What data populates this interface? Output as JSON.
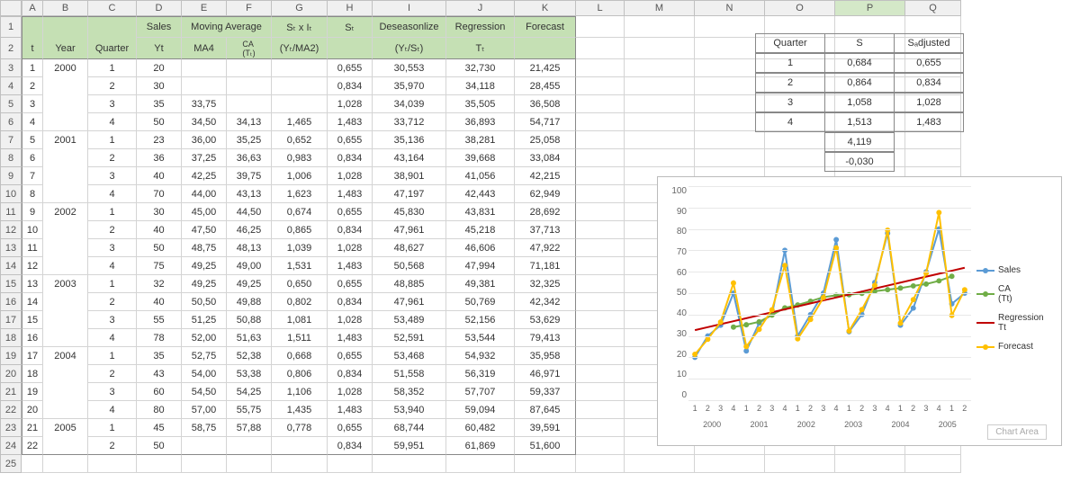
{
  "colWidths": {
    "corner": 24,
    "A": 24,
    "B": 50,
    "C": 54,
    "D": 50,
    "E": 50,
    "F": 50,
    "G": 62,
    "H": 50,
    "I": 82,
    "J": 76,
    "K": 68,
    "L": 54,
    "M": 78,
    "N": 78,
    "O": 78,
    "P": 78,
    "Q": 62
  },
  "colLetters": [
    "A",
    "B",
    "C",
    "D",
    "E",
    "F",
    "G",
    "H",
    "I",
    "J",
    "K",
    "L",
    "M",
    "N",
    "O",
    "P",
    "Q"
  ],
  "selectedCol": "P",
  "rowCount": 25,
  "headersTop": {
    "D": "Sales",
    "E": "Moving Average",
    "G": "Sₜ x Iₜ",
    "H": "Sₜ",
    "I": "Deseasonlize",
    "J": "Regression",
    "K": "Forecast"
  },
  "headersBottom": {
    "A": "t",
    "B": "Year",
    "C": "Quarter",
    "D": "Yt",
    "E": "MA4",
    "F": "CA\n(Tₜ)",
    "G": "(Yₜ/MA2)",
    "I": "(Yₜ/Sₜ)",
    "J": "Tₜ"
  },
  "yearSpans": [
    {
      "year": "2000",
      "from": 3,
      "to": 6
    },
    {
      "year": "2001",
      "from": 7,
      "to": 10
    },
    {
      "year": "2002",
      "from": 11,
      "to": 14
    },
    {
      "year": "2003",
      "from": 15,
      "to": 18
    },
    {
      "year": "2004",
      "from": 19,
      "to": 22
    },
    {
      "year": "2005",
      "from": 23,
      "to": 24
    }
  ],
  "rows": [
    {
      "t": 1,
      "q": 1,
      "yt": 20,
      "ma4": "",
      "ca": "",
      "sxi": "",
      "s": "0,655",
      "de": "30,553",
      "reg": "32,730",
      "fc": "21,425"
    },
    {
      "t": 2,
      "q": 2,
      "yt": 30,
      "ma4": "",
      "ca": "",
      "sxi": "",
      "s": "0,834",
      "de": "35,970",
      "reg": "34,118",
      "fc": "28,455"
    },
    {
      "t": 3,
      "q": 3,
      "yt": 35,
      "ma4": "33,75",
      "ca": "",
      "sxi": "",
      "s": "1,028",
      "de": "34,039",
      "reg": "35,505",
      "fc": "36,508"
    },
    {
      "t": 4,
      "q": 4,
      "yt": 50,
      "ma4": "34,50",
      "ca": "34,13",
      "sxi": "1,465",
      "s": "1,483",
      "de": "33,712",
      "reg": "36,893",
      "fc": "54,717"
    },
    {
      "t": 5,
      "q": 1,
      "yt": 23,
      "ma4": "36,00",
      "ca": "35,25",
      "sxi": "0,652",
      "s": "0,655",
      "de": "35,136",
      "reg": "38,281",
      "fc": "25,058"
    },
    {
      "t": 6,
      "q": 2,
      "yt": 36,
      "ma4": "37,25",
      "ca": "36,63",
      "sxi": "0,983",
      "s": "0,834",
      "de": "43,164",
      "reg": "39,668",
      "fc": "33,084"
    },
    {
      "t": 7,
      "q": 3,
      "yt": 40,
      "ma4": "42,25",
      "ca": "39,75",
      "sxi": "1,006",
      "s": "1,028",
      "de": "38,901",
      "reg": "41,056",
      "fc": "42,215"
    },
    {
      "t": 8,
      "q": 4,
      "yt": 70,
      "ma4": "44,00",
      "ca": "43,13",
      "sxi": "1,623",
      "s": "1,483",
      "de": "47,197",
      "reg": "42,443",
      "fc": "62,949"
    },
    {
      "t": 9,
      "q": 1,
      "yt": 30,
      "ma4": "45,00",
      "ca": "44,50",
      "sxi": "0,674",
      "s": "0,655",
      "de": "45,830",
      "reg": "43,831",
      "fc": "28,692"
    },
    {
      "t": 10,
      "q": 2,
      "yt": 40,
      "ma4": "47,50",
      "ca": "46,25",
      "sxi": "0,865",
      "s": "0,834",
      "de": "47,961",
      "reg": "45,218",
      "fc": "37,713"
    },
    {
      "t": 11,
      "q": 3,
      "yt": 50,
      "ma4": "48,75",
      "ca": "48,13",
      "sxi": "1,039",
      "s": "1,028",
      "de": "48,627",
      "reg": "46,606",
      "fc": "47,922"
    },
    {
      "t": 12,
      "q": 4,
      "yt": 75,
      "ma4": "49,25",
      "ca": "49,00",
      "sxi": "1,531",
      "s": "1,483",
      "de": "50,568",
      "reg": "47,994",
      "fc": "71,181"
    },
    {
      "t": 13,
      "q": 1,
      "yt": 32,
      "ma4": "49,25",
      "ca": "49,25",
      "sxi": "0,650",
      "s": "0,655",
      "de": "48,885",
      "reg": "49,381",
      "fc": "32,325"
    },
    {
      "t": 14,
      "q": 2,
      "yt": 40,
      "ma4": "50,50",
      "ca": "49,88",
      "sxi": "0,802",
      "s": "0,834",
      "de": "47,961",
      "reg": "50,769",
      "fc": "42,342"
    },
    {
      "t": 15,
      "q": 3,
      "yt": 55,
      "ma4": "51,25",
      "ca": "50,88",
      "sxi": "1,081",
      "s": "1,028",
      "de": "53,489",
      "reg": "52,156",
      "fc": "53,629"
    },
    {
      "t": 16,
      "q": 4,
      "yt": 78,
      "ma4": "52,00",
      "ca": "51,63",
      "sxi": "1,511",
      "s": "1,483",
      "de": "52,591",
      "reg": "53,544",
      "fc": "79,413"
    },
    {
      "t": 17,
      "q": 1,
      "yt": 35,
      "ma4": "52,75",
      "ca": "52,38",
      "sxi": "0,668",
      "s": "0,655",
      "de": "53,468",
      "reg": "54,932",
      "fc": "35,958"
    },
    {
      "t": 18,
      "q": 2,
      "yt": 43,
      "ma4": "54,00",
      "ca": "53,38",
      "sxi": "0,806",
      "s": "0,834",
      "de": "51,558",
      "reg": "56,319",
      "fc": "46,971"
    },
    {
      "t": 19,
      "q": 3,
      "yt": 60,
      "ma4": "54,50",
      "ca": "54,25",
      "sxi": "1,106",
      "s": "1,028",
      "de": "58,352",
      "reg": "57,707",
      "fc": "59,337"
    },
    {
      "t": 20,
      "q": 4,
      "yt": 80,
      "ma4": "57,00",
      "ca": "55,75",
      "sxi": "1,435",
      "s": "1,483",
      "de": "53,940",
      "reg": "59,094",
      "fc": "87,645"
    },
    {
      "t": 21,
      "q": 1,
      "yt": 45,
      "ma4": "58,75",
      "ca": "57,88",
      "sxi": "0,778",
      "s": "0,655",
      "de": "68,744",
      "reg": "60,482",
      "fc": "39,591"
    },
    {
      "t": 22,
      "q": 2,
      "yt": 50,
      "ma4": "",
      "ca": "",
      "sxi": "",
      "s": "0,834",
      "de": "59,951",
      "reg": "61,869",
      "fc": "51,600"
    }
  ],
  "sideTable": {
    "headers": [
      "Quarter",
      "S",
      "Sₐdjusted"
    ],
    "rows": [
      [
        "1",
        "0,684",
        "0,655"
      ],
      [
        "2",
        "0,864",
        "0,834"
      ],
      [
        "3",
        "1,058",
        "1,028"
      ],
      [
        "4",
        "1,513",
        "1,483"
      ],
      [
        "",
        "4,119",
        ""
      ],
      [
        "",
        "-0,030",
        ""
      ]
    ]
  },
  "chart": {
    "ymax": 100,
    "ymin": 0,
    "ystep": 10,
    "xLabelsQ": [
      "1",
      "2",
      "3",
      "4",
      "1",
      "2",
      "3",
      "4",
      "1",
      "2",
      "3",
      "4",
      "1",
      "2",
      "3",
      "4",
      "1",
      "2",
      "3",
      "4",
      "1",
      "2"
    ],
    "xLabelsY": [
      "2000",
      "2001",
      "2002",
      "2003",
      "2004",
      "2005"
    ],
    "series": {
      "sales": {
        "color": "#5b9bd5",
        "label": "Sales",
        "marker": true,
        "data": [
          20,
          30,
          35,
          50,
          23,
          36,
          40,
          70,
          30,
          40,
          50,
          75,
          32,
          40,
          55,
          78,
          35,
          43,
          60,
          80,
          45,
          50
        ]
      },
      "ca": {
        "color": "#70ad47",
        "label": "CA\n(Tt)",
        "marker": true,
        "start": 3,
        "data": [
          34.13,
          35.25,
          36.63,
          39.75,
          43.13,
          44.5,
          46.25,
          48.13,
          49.0,
          49.25,
          49.88,
          50.88,
          51.63,
          52.38,
          53.38,
          54.25,
          55.75,
          57.88
        ]
      },
      "reg": {
        "color": "#c00000",
        "label": "Regression\nTt",
        "marker": false,
        "data": [
          32.73,
          34.12,
          35.51,
          36.89,
          38.28,
          39.67,
          41.06,
          42.44,
          43.83,
          45.22,
          46.61,
          47.99,
          49.38,
          50.77,
          52.16,
          53.54,
          54.93,
          56.32,
          57.71,
          59.09,
          60.48,
          61.87
        ]
      },
      "forecast": {
        "color": "#ffc000",
        "label": "Forecast",
        "marker": true,
        "data": [
          21.43,
          28.46,
          36.51,
          54.72,
          25.06,
          33.08,
          42.22,
          62.95,
          28.69,
          37.71,
          47.92,
          71.18,
          32.33,
          42.34,
          53.63,
          79.41,
          35.96,
          46.97,
          59.34,
          87.65,
          39.59,
          51.6
        ]
      }
    },
    "legendOrder": [
      "sales",
      "ca",
      "reg",
      "forecast"
    ]
  },
  "chartAreaBtn": "Chart Area"
}
